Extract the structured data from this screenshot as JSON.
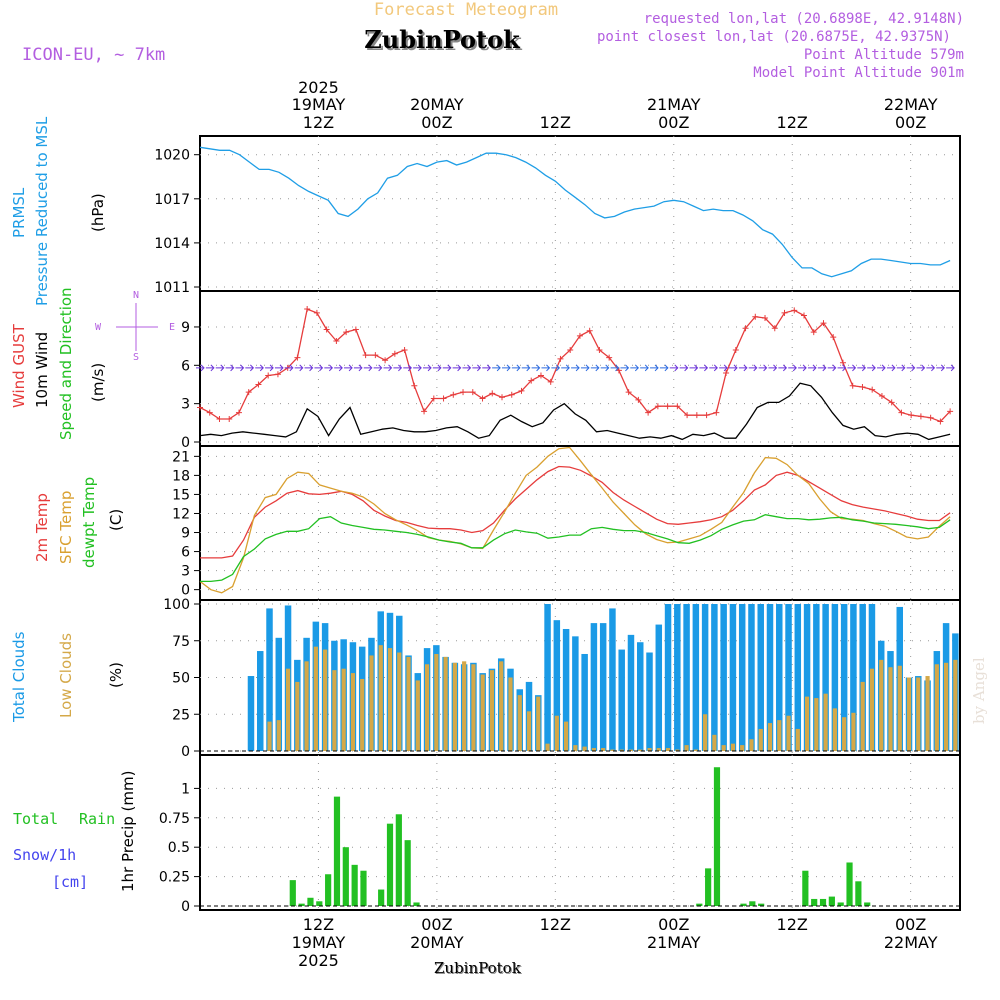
{
  "header": {
    "title": "Forecast Meteogram",
    "location": "ZubinPotok",
    "model": "ICON-EU, ~ 7km",
    "requested": "requested lon,lat (20.6898E, 42.9148N)",
    "closest": "point closest lon,lat (20.6875E, 42.9375N)",
    "altitude": "Point Altitude 579m",
    "model_altitude": "Model Point Altitude 901m",
    "bottom_location": "ZubinPotok",
    "watermark": "by Angel"
  },
  "colors": {
    "pressure": "#1f9ee6",
    "gust": "#e63c3c",
    "wind": "#000000",
    "temp2m": "#e63c3c",
    "sfc": "#d9a030",
    "dewpt": "#22c022",
    "total_clouds": "#1a9ae6",
    "low_clouds": "#d4a848",
    "rain": "#22c022",
    "snow": "#4444ee",
    "label_purple": "#b35ee0",
    "title_gold": "#f2c87c"
  },
  "axes": {
    "top_ticks": [
      {
        "t": 12,
        "line1": "2025",
        "line2": "19MAY",
        "line3": "12Z"
      },
      {
        "t": 24,
        "line1": "",
        "line2": "20MAY",
        "line3": "00Z"
      },
      {
        "t": 36,
        "line1": "",
        "line2": "",
        "line3": "12Z"
      },
      {
        "t": 48,
        "line1": "",
        "line2": "21MAY",
        "line3": "00Z"
      },
      {
        "t": 60,
        "line1": "",
        "line2": "",
        "line3": "12Z"
      },
      {
        "t": 72,
        "line1": "",
        "line2": "22MAY",
        "line3": "00Z"
      }
    ],
    "bottom_ticks": [
      {
        "t": 12,
        "line1": "12Z",
        "line2": "19MAY",
        "line3": "2025"
      },
      {
        "t": 24,
        "line1": "00Z",
        "line2": "20MAY",
        "line3": ""
      },
      {
        "t": 36,
        "line1": "12Z",
        "line2": "",
        "line3": ""
      },
      {
        "t": 48,
        "line1": "00Z",
        "line2": "21MAY",
        "line3": ""
      },
      {
        "t": 60,
        "line1": "12Z",
        "line2": "",
        "line3": ""
      },
      {
        "t": 72,
        "line1": "00Z",
        "line2": "22MAY",
        "line3": ""
      }
    ]
  },
  "panel_labels": {
    "pressure": {
      "l1": "PRMSL",
      "l2": "Pressure Reduced to MSL",
      "unit": "(hPa)"
    },
    "wind": {
      "l1": "Wind GUST",
      "l2": "10m Wind",
      "l3": "Speed and Direction",
      "unit": "(m/s)",
      "compass": [
        "N",
        "W",
        "E",
        "S"
      ]
    },
    "temp": {
      "l1": "2m Temp",
      "l2": "SFC Temp",
      "l3": "dewpt Temp",
      "unit": "(C)"
    },
    "clouds": {
      "l1": "Total Clouds",
      "l2": "Low Clouds",
      "unit": "(%)"
    },
    "precip": {
      "l1": "Total",
      "l1b": "Rain",
      "l2": "Snow/1h",
      "l3": "[cm]",
      "unit": "1hr Precip (mm)"
    }
  },
  "chart_data": [
    {
      "type": "line",
      "name": "pressure",
      "ylim": [
        1011,
        1021
      ],
      "yticks": [
        1011,
        1014,
        1017,
        1020
      ],
      "series": [
        {
          "name": "PRMSL",
          "x": [
            0,
            1,
            2,
            3,
            4,
            5,
            6,
            7,
            8,
            9,
            10,
            11,
            12,
            13,
            14,
            15,
            16,
            17,
            18,
            19,
            20,
            21,
            22,
            23,
            24,
            25,
            26,
            27,
            28,
            29,
            30,
            31,
            32,
            33,
            34,
            35,
            36,
            37,
            38,
            39,
            40,
            41,
            42,
            43,
            44,
            45,
            46,
            47,
            48,
            49,
            50,
            51,
            52,
            53,
            54,
            55,
            56,
            57,
            58,
            59,
            60,
            61,
            62,
            63,
            64,
            65,
            66,
            67,
            68,
            69,
            70,
            71,
            72,
            73,
            74,
            75,
            76
          ],
          "values": [
            1020.5,
            1020.4,
            1020.3,
            1020.3,
            1020.0,
            1019.5,
            1019.0,
            1019.0,
            1018.8,
            1018.4,
            1017.9,
            1017.5,
            1017.2,
            1016.9,
            1016.0,
            1015.8,
            1016.3,
            1017.0,
            1017.4,
            1018.4,
            1018.6,
            1019.2,
            1019.4,
            1019.2,
            1019.5,
            1019.6,
            1019.3,
            1019.5,
            1019.8,
            1020.1,
            1020.1,
            1020.0,
            1019.8,
            1019.5,
            1019.1,
            1018.6,
            1018.2,
            1017.6,
            1017.1,
            1016.6,
            1016.0,
            1015.7,
            1015.8,
            1016.1,
            1016.3,
            1016.4,
            1016.5,
            1016.8,
            1016.9,
            1016.8,
            1016.5,
            1016.2,
            1016.3,
            1016.2,
            1016.2,
            1015.9,
            1015.5,
            1014.9,
            1014.6,
            1013.9,
            1013.0,
            1012.3,
            1012.3,
            1011.9,
            1011.7,
            1011.9,
            1012.1,
            1012.6,
            1012.9,
            1012.9,
            1012.8,
            1012.7,
            1012.6,
            1012.6,
            1012.5,
            1012.5,
            1012.8
          ]
        }
      ]
    },
    {
      "type": "line",
      "name": "wind",
      "ylim": [
        0,
        11.5
      ],
      "yticks": [
        0,
        3,
        6,
        9
      ],
      "series": [
        {
          "name": "Wind GUST",
          "values": [
            2.7,
            2.3,
            1.8,
            1.8,
            2.3,
            3.9,
            4.5,
            5.2,
            5.3,
            5.8,
            6.6,
            10.4,
            10.1,
            8.8,
            7.9,
            8.6,
            8.8,
            6.8,
            6.8,
            6.4,
            6.9,
            7.2,
            4.4,
            2.4,
            3.4,
            3.4,
            3.7,
            3.9,
            3.9,
            3.4,
            3.8,
            3.5,
            3.7,
            4.0,
            4.8,
            5.2,
            4.7,
            6.5,
            7.2,
            8.3,
            8.7,
            7.2,
            6.6,
            5.6,
            3.9,
            3.3,
            2.3,
            2.8,
            2.8,
            2.8,
            2.1,
            2.1,
            2.1,
            2.3,
            5.4,
            7.2,
            8.9,
            9.8,
            9.7,
            8.9,
            10.1,
            10.3,
            9.9,
            8.6,
            9.3,
            8.2,
            6.2,
            4.4,
            4.3,
            4.1,
            3.6,
            3.1,
            2.3,
            2.1,
            2.0,
            1.9,
            1.6,
            2.4
          ]
        },
        {
          "name": "10m Wind",
          "values": [
            0.5,
            0.6,
            0.5,
            0.7,
            0.8,
            0.7,
            0.6,
            0.5,
            0.4,
            0.8,
            2.6,
            2.0,
            0.5,
            1.8,
            2.7,
            0.6,
            0.8,
            1.0,
            1.1,
            0.9,
            0.8,
            0.8,
            0.9,
            1.1,
            1.2,
            0.8,
            0.3,
            0.5,
            1.7,
            2.1,
            1.6,
            1.2,
            1.5,
            2.5,
            3.0,
            2.2,
            1.7,
            0.8,
            0.9,
            0.7,
            0.5,
            0.3,
            0.4,
            0.3,
            0.5,
            0.2,
            0.6,
            0.5,
            0.7,
            0.3,
            0.3,
            1.4,
            2.7,
            3.1,
            3.1,
            3.6,
            4.6,
            4.4,
            3.5,
            2.3,
            1.3,
            1.0,
            1.2,
            0.5,
            0.4,
            0.6,
            0.7,
            0.6,
            0.2,
            0.4,
            0.6
          ]
        }
      ],
      "series_x_start": 0
    },
    {
      "type": "line",
      "name": "temperature",
      "ylim": [
        -1,
        22
      ],
      "yticks": [
        0,
        3,
        6,
        9,
        12,
        15,
        18,
        21
      ],
      "series": [
        {
          "name": "2m Temp",
          "values": [
            5.0,
            5.0,
            5.0,
            5.3,
            7.8,
            11.4,
            13.0,
            14.0,
            15.2,
            15.6,
            15.1,
            15.0,
            15.2,
            15.5,
            15.0,
            14.0,
            12.5,
            11.6,
            10.9,
            10.6,
            10.1,
            9.7,
            9.6,
            9.6,
            9.4,
            9.0,
            9.3,
            10.5,
            12.5,
            14.3,
            15.8,
            17.3,
            18.6,
            19.4,
            19.3,
            18.8,
            17.9,
            16.9,
            15.3,
            14.1,
            13.1,
            12.1,
            11.1,
            10.4,
            10.3,
            10.5,
            10.7,
            11.0,
            11.5,
            12.5,
            14.0,
            15.7,
            16.5,
            18.0,
            18.5,
            18.0,
            17.0,
            16.0,
            15.0,
            14.0,
            13.4,
            13.0,
            12.7,
            12.4,
            12.0,
            11.6,
            11.1,
            10.9,
            10.9,
            12.1
          ]
        },
        {
          "name": "SFC Temp",
          "values": [
            1.3,
            0.0,
            -0.5,
            0.5,
            5.0,
            11.7,
            14.5,
            15.0,
            17.5,
            18.5,
            18.3,
            16.5,
            16.0,
            15.5,
            15.2,
            14.6,
            13.5,
            12.0,
            11.0,
            10.2,
            9.3,
            8.2,
            7.8,
            7.6,
            7.2,
            6.6,
            6.5,
            9.4,
            12.2,
            15.2,
            18.0,
            19.3,
            21.0,
            22.2,
            22.4,
            20.3,
            18.1,
            16.0,
            13.8,
            12.0,
            10.2,
            8.8,
            7.9,
            7.4,
            7.5,
            8.0,
            8.5,
            9.5,
            10.6,
            13.0,
            15.3,
            18.4,
            20.8,
            20.7,
            19.7,
            18.0,
            16.7,
            14.3,
            12.3,
            11.2,
            11.1,
            10.9,
            10.4,
            10.0,
            9.2,
            8.3,
            8.0,
            8.3,
            10.0,
            11.5
          ]
        },
        {
          "name": "dewpt Temp",
          "values": [
            1.3,
            1.3,
            1.5,
            2.4,
            5.2,
            6.4,
            8.0,
            8.7,
            9.2,
            9.2,
            9.6,
            11.2,
            11.5,
            10.5,
            10.1,
            9.8,
            9.5,
            9.4,
            9.2,
            9.0,
            8.7,
            8.3,
            7.8,
            7.5,
            7.3,
            6.6,
            6.6,
            7.8,
            8.8,
            9.4,
            9.1,
            8.9,
            8.1,
            8.3,
            8.6,
            8.6,
            9.6,
            9.8,
            9.5,
            9.3,
            9.3,
            9.0,
            8.5,
            8.0,
            7.4,
            7.3,
            7.8,
            8.5,
            9.5,
            10.2,
            10.8,
            11.0,
            11.8,
            11.5,
            11.2,
            11.2,
            11.0,
            11.1,
            11.3,
            11.4,
            11.0,
            10.8,
            10.5,
            10.4,
            10.3,
            10.1,
            9.9,
            9.6,
            9.8,
            11.0
          ]
        }
      ]
    },
    {
      "type": "bar",
      "name": "clouds",
      "ylim": [
        0,
        100
      ],
      "yticks": [
        0,
        25,
        50,
        75,
        100
      ],
      "series": [
        {
          "name": "Total Clouds",
          "values": [
            0,
            0,
            0,
            0,
            0,
            51,
            68,
            97,
            77,
            99,
            62,
            77,
            88,
            87,
            75,
            76,
            74,
            71,
            77,
            95,
            94,
            92,
            65,
            53,
            70,
            72,
            64,
            60,
            59,
            60,
            53,
            56,
            63,
            56,
            42,
            47,
            38,
            100,
            89,
            83,
            78,
            66,
            87,
            87,
            97,
            69,
            79,
            74,
            67,
            86,
            100,
            100,
            100,
            100,
            100,
            100,
            100,
            100,
            100,
            100,
            100,
            100,
            100,
            100,
            100,
            100,
            100,
            100,
            100,
            100,
            100,
            100,
            100,
            75,
            68,
            98,
            50,
            51,
            48,
            68,
            87,
            80
          ]
        },
        {
          "name": "Low Clouds",
          "values": [
            0,
            0,
            0,
            0,
            0,
            0,
            0,
            20,
            21,
            56,
            47,
            61,
            71,
            69,
            55,
            56,
            53,
            49,
            65,
            72,
            70,
            67,
            64,
            48,
            59,
            66,
            64,
            60,
            61,
            59,
            52,
            55,
            61,
            50,
            38,
            27,
            37,
            5,
            24,
            20,
            4,
            3,
            2,
            2,
            1,
            1,
            1,
            1,
            2,
            2,
            2,
            1,
            4,
            1,
            25,
            11,
            4,
            5,
            4,
            8,
            15,
            19,
            21,
            24,
            15,
            37,
            36,
            39,
            29,
            23,
            26,
            47,
            56,
            62,
            57,
            58,
            50,
            50,
            51,
            59,
            60,
            62
          ]
        }
      ]
    },
    {
      "type": "bar",
      "name": "precip",
      "ylim": [
        0,
        1.25
      ],
      "yticks": [
        0,
        0.25,
        0.5,
        0.75,
        1
      ],
      "series": [
        {
          "name": "Total Rain",
          "values": [
            0,
            0,
            0,
            0,
            0,
            0,
            0,
            0,
            0,
            0,
            0.22,
            0.02,
            0.07,
            0.04,
            0.27,
            0.93,
            0.5,
            0.35,
            0.3,
            0,
            0.14,
            0.7,
            0.78,
            0.56,
            0.03,
            0,
            0,
            0,
            0,
            0,
            0,
            0,
            0,
            0,
            0,
            0,
            0,
            0,
            0,
            0,
            0,
            0,
            0,
            0,
            0,
            0,
            0,
            0,
            0,
            0,
            0,
            0,
            0,
            0,
            0,
            0,
            0.02,
            0.32,
            1.18,
            0,
            0,
            0.02,
            0.04,
            0.02,
            0,
            0,
            0,
            0,
            0.3,
            0.06,
            0.06,
            0.08,
            0.03,
            0.37,
            0.21,
            0.03,
            0,
            0,
            0,
            0,
            0,
            0,
            0,
            0,
            0,
            0
          ]
        }
      ]
    }
  ]
}
